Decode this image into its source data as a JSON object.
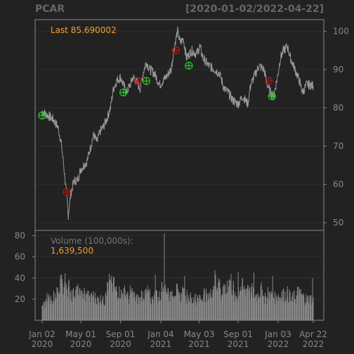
{
  "title": {
    "symbol": "PCAR",
    "date_range": "[2020-01-02/2022-04-22]"
  },
  "price_panel": {
    "last_label": "Last 85.690002"
  },
  "volume_panel": {
    "title": "Volume (100,000s):",
    "last_value": "1,639,500"
  },
  "colors": {
    "background": "#222222",
    "panel_border": "#888888",
    "grid": "#2e2e2e",
    "price_line": "#999999",
    "volume_bar": "#888888",
    "axis_text": "#888888",
    "highlight": "#f0a030",
    "buy_marker": "#2ec82e",
    "sell_marker": "#b01818"
  },
  "chart_data": [
    {
      "type": "line",
      "panel": "price",
      "series_color": "#999999",
      "x_range": [
        "2020-01-02",
        "2022-04-22"
      ],
      "ylim": [
        48,
        103
      ],
      "y_ticks": [
        50,
        60,
        70,
        80,
        90,
        100
      ],
      "points": [
        [
          "2020-01-02",
          79
        ],
        [
          "2020-01-20",
          78
        ],
        [
          "2020-02-05",
          77
        ],
        [
          "2020-02-20",
          75
        ],
        [
          "2020-03-01",
          71
        ],
        [
          "2020-03-10",
          64
        ],
        [
          "2020-03-18",
          57
        ],
        [
          "2020-03-23",
          52
        ],
        [
          "2020-03-27",
          55
        ],
        [
          "2020-04-01",
          58
        ],
        [
          "2020-04-10",
          61
        ],
        [
          "2020-04-20",
          61
        ],
        [
          "2020-05-01",
          64
        ],
        [
          "2020-05-10",
          65
        ],
        [
          "2020-05-20",
          66
        ],
        [
          "2020-06-01",
          70
        ],
        [
          "2020-06-10",
          73
        ],
        [
          "2020-06-20",
          71
        ],
        [
          "2020-07-01",
          74
        ],
        [
          "2020-07-10",
          75
        ],
        [
          "2020-07-20",
          77
        ],
        [
          "2020-08-01",
          80
        ],
        [
          "2020-08-10",
          85
        ],
        [
          "2020-08-20",
          87
        ],
        [
          "2020-09-01",
          88
        ],
        [
          "2020-09-10",
          86
        ],
        [
          "2020-09-20",
          84
        ],
        [
          "2020-10-01",
          86
        ],
        [
          "2020-10-10",
          88
        ],
        [
          "2020-10-20",
          87
        ],
        [
          "2020-11-01",
          85
        ],
        [
          "2020-11-10",
          89
        ],
        [
          "2020-11-20",
          92
        ],
        [
          "2020-12-01",
          90
        ],
        [
          "2020-12-15",
          89
        ],
        [
          "2021-01-01",
          86
        ],
        [
          "2021-01-20",
          88
        ],
        [
          "2021-02-05",
          90
        ],
        [
          "2021-02-15",
          96
        ],
        [
          "2021-02-25",
          100
        ],
        [
          "2021-03-05",
          97
        ],
        [
          "2021-03-15",
          98
        ],
        [
          "2021-03-25",
          93
        ],
        [
          "2021-04-10",
          95
        ],
        [
          "2021-04-25",
          94
        ],
        [
          "2021-05-05",
          96
        ],
        [
          "2021-05-15",
          93
        ],
        [
          "2021-06-01",
          91
        ],
        [
          "2021-06-20",
          90
        ],
        [
          "2021-07-05",
          89
        ],
        [
          "2021-07-20",
          85
        ],
        [
          "2021-08-01",
          84
        ],
        [
          "2021-08-15",
          82
        ],
        [
          "2021-09-01",
          81
        ],
        [
          "2021-09-15",
          83
        ],
        [
          "2021-10-01",
          81
        ],
        [
          "2021-10-10",
          86
        ],
        [
          "2021-10-25",
          89
        ],
        [
          "2021-11-05",
          91
        ],
        [
          "2021-11-20",
          90
        ],
        [
          "2021-12-01",
          86
        ],
        [
          "2021-12-10",
          84
        ],
        [
          "2021-12-20",
          83
        ],
        [
          "2022-01-01",
          88
        ],
        [
          "2022-01-10",
          93
        ],
        [
          "2022-01-20",
          95
        ],
        [
          "2022-02-01",
          96
        ],
        [
          "2022-02-10",
          93
        ],
        [
          "2022-02-20",
          91
        ],
        [
          "2022-03-01",
          89
        ],
        [
          "2022-03-10",
          87
        ],
        [
          "2022-03-20",
          84
        ],
        [
          "2022-04-01",
          86
        ],
        [
          "2022-04-10",
          86
        ],
        [
          "2022-04-22",
          85.69
        ]
      ],
      "markers": [
        {
          "date": "2020-01-02",
          "value": 78,
          "signal": "buy"
        },
        {
          "date": "2020-03-18",
          "value": 58,
          "signal": "sell"
        },
        {
          "date": "2020-09-10",
          "value": 84,
          "signal": "buy"
        },
        {
          "date": "2020-10-25",
          "value": 87,
          "signal": "sell"
        },
        {
          "date": "2020-11-20",
          "value": 87,
          "signal": "buy"
        },
        {
          "date": "2021-02-20",
          "value": 95,
          "signal": "sell"
        },
        {
          "date": "2021-04-01",
          "value": 91,
          "signal": "buy"
        },
        {
          "date": "2021-12-05",
          "value": 87,
          "signal": "sell"
        },
        {
          "date": "2021-12-15",
          "value": 83,
          "signal": "buy"
        }
      ]
    },
    {
      "type": "bar",
      "panel": "volume",
      "series_color": "#888888",
      "ylim": [
        0,
        85
      ],
      "y_ticks": [
        20,
        40,
        60,
        80
      ],
      "x_tick_labels": [
        [
          "Jan 02",
          "2020"
        ],
        [
          "May 01",
          "2020"
        ],
        [
          "Sep 01",
          "2020"
        ],
        [
          "Jan 04",
          "2021"
        ],
        [
          "May 03",
          "2021"
        ],
        [
          "Sep 01",
          "2021"
        ],
        [
          "Jan 03",
          "2022"
        ],
        [
          "Apr 22",
          "2022"
        ]
      ],
      "x_tick_dates": [
        "2020-01-02",
        "2020-05-01",
        "2020-09-01",
        "2021-01-04",
        "2021-05-03",
        "2021-09-01",
        "2022-01-03",
        "2022-04-22"
      ],
      "weekly_volume": [
        17,
        16,
        20,
        18,
        15,
        22,
        27,
        22,
        34,
        30,
        36,
        31,
        27,
        24,
        26,
        27,
        24,
        23,
        25,
        22,
        24,
        20,
        23,
        21,
        19,
        20,
        21,
        18,
        30,
        35,
        33,
        32,
        28,
        27,
        26,
        25,
        26,
        24,
        20,
        26,
        23,
        21,
        20,
        19,
        25,
        22,
        26,
        23,
        19,
        22,
        24,
        21,
        22,
        38,
        33,
        28,
        24,
        22,
        28,
        27,
        24,
        22,
        25,
        20,
        23,
        21,
        18,
        22,
        20,
        19,
        21,
        25,
        23,
        20,
        24,
        29,
        38,
        34,
        36,
        25,
        27,
        26,
        35,
        37,
        30,
        21,
        24,
        30,
        31,
        28,
        30,
        33,
        25,
        27,
        23,
        24,
        26,
        28,
        22,
        20,
        25,
        23,
        22,
        21,
        23,
        22,
        25,
        24,
        25,
        23,
        18,
        22,
        21,
        26,
        24,
        22,
        20
      ],
      "spikes": [
        {
          "date": "2020-12-18",
          "value": 43
        },
        {
          "date": "2021-01-15",
          "value": 82
        },
        {
          "date": "2021-03-19",
          "value": 42
        },
        {
          "date": "2021-09-01",
          "value": 46
        },
        {
          "date": "2021-10-20",
          "value": 45
        },
        {
          "date": "2021-12-17",
          "value": 42
        },
        {
          "date": "2022-04-20",
          "value": 40
        }
      ]
    }
  ]
}
